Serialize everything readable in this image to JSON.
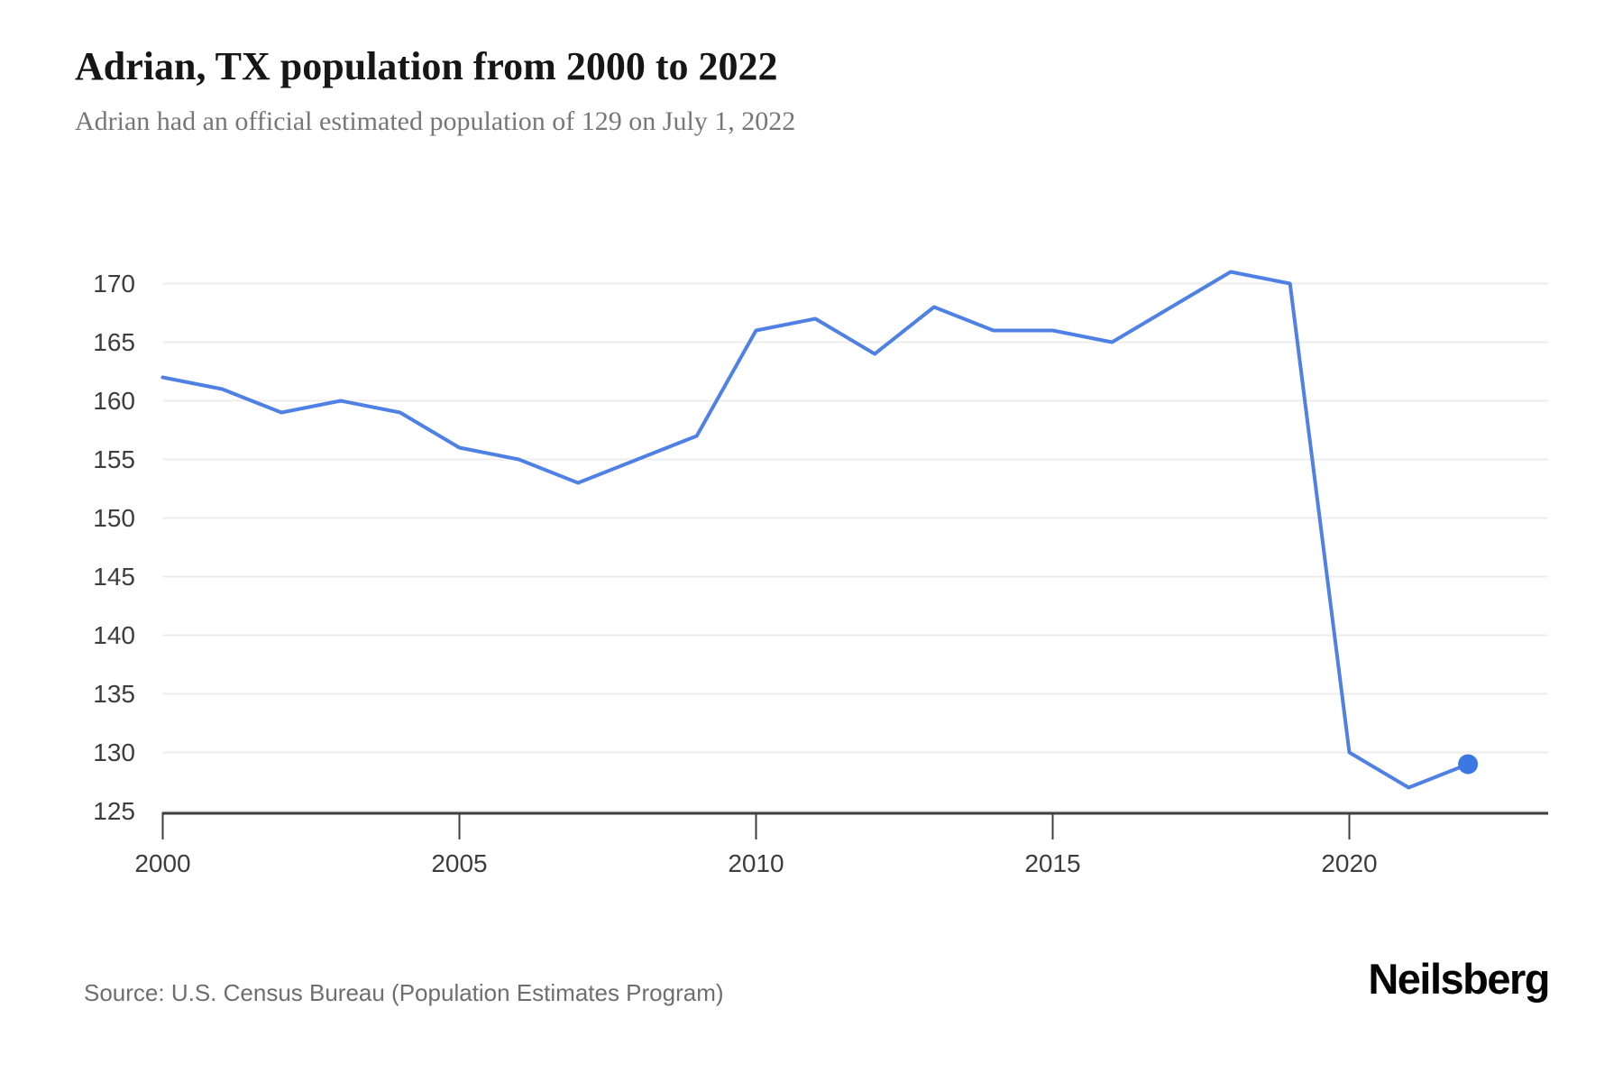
{
  "header": {
    "title": "Adrian, TX population from 2000 to 2022",
    "subtitle": "Adrian had an official estimated population of 129 on July 1, 2022"
  },
  "footer": {
    "source": "Source: U.S. Census Bureau (Population Estimates Program)",
    "brand": "Neilsberg"
  },
  "colors": {
    "line": "#4f80e4",
    "end_dot": "#3b78e4",
    "gridline": "#ededed",
    "axis": "#3f3f3f",
    "tick_label": "#3d3d3d"
  },
  "chart_data": {
    "type": "line",
    "title": "Adrian, TX population from 2000 to 2022",
    "subtitle": "Adrian had an official estimated population of 129 on July 1, 2022",
    "x": [
      2000,
      2001,
      2002,
      2003,
      2004,
      2005,
      2006,
      2007,
      2008,
      2009,
      2010,
      2011,
      2012,
      2013,
      2014,
      2015,
      2016,
      2017,
      2018,
      2019,
      2020,
      2021,
      2022
    ],
    "series": [
      {
        "name": "Population",
        "values": [
          162,
          161,
          159,
          160,
          159,
          156,
          155,
          153,
          155,
          157,
          166,
          167,
          164,
          168,
          166,
          166,
          165,
          168,
          171,
          170,
          130,
          127,
          129
        ]
      }
    ],
    "xlabel": "",
    "ylabel": "",
    "xticks": [
      2000,
      2005,
      2010,
      2015,
      2020
    ],
    "yticks": [
      125,
      130,
      135,
      140,
      145,
      150,
      155,
      160,
      165,
      170
    ],
    "ylim": [
      125,
      173
    ],
    "xlim": [
      2000,
      2023.4
    ],
    "grid": "horizontal",
    "legend_position": "none",
    "last_point_value": 129,
    "last_point_marker": true
  }
}
